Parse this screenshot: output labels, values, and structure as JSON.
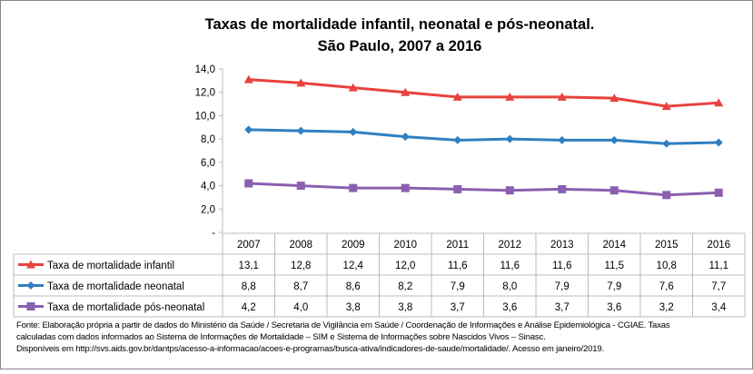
{
  "chart_data": {
    "type": "line",
    "title_line1": "Taxas de mortalidade infantil, neonatal e pós-neonatal.",
    "title_line2": "São Paulo, 2007 a 2016",
    "categories": [
      "2007",
      "2008",
      "2009",
      "2010",
      "2011",
      "2012",
      "2013",
      "2014",
      "2015",
      "2016"
    ],
    "ylim": [
      0,
      14
    ],
    "yticks": [
      "-",
      "2,0",
      "4,0",
      "6,0",
      "8,0",
      "10,0",
      "12,0",
      "14,0"
    ],
    "grid": false,
    "legend": "data-table",
    "series": [
      {
        "name": "Taxa de mortalidade infantil",
        "color": "#e8423f",
        "marker": "triangle",
        "values": [
          13.1,
          12.8,
          12.4,
          12.0,
          11.6,
          11.6,
          11.6,
          11.5,
          10.8,
          11.1
        ],
        "labels": [
          "13,1",
          "12,8",
          "12,4",
          "12,0",
          "11,6",
          "11,6",
          "11,6",
          "11,5",
          "10,8",
          "11,1"
        ]
      },
      {
        "name": "Taxa de mortalidade neonatal",
        "color": "#2f7fc1",
        "marker": "diamond",
        "values": [
          8.8,
          8.7,
          8.6,
          8.2,
          7.9,
          8.0,
          7.9,
          7.9,
          7.6,
          7.7
        ],
        "labels": [
          "8,8",
          "8,7",
          "8,6",
          "8,2",
          "7,9",
          "8,0",
          "7,9",
          "7,9",
          "7,6",
          "7,7"
        ]
      },
      {
        "name": "Taxa de mortalidade pós-neonatal",
        "color": "#8a5fb0",
        "marker": "square",
        "values": [
          4.2,
          4.0,
          3.8,
          3.8,
          3.7,
          3.6,
          3.7,
          3.6,
          3.2,
          3.4
        ],
        "labels": [
          "4,2",
          "4,0",
          "3,8",
          "3,8",
          "3,7",
          "3,6",
          "3,7",
          "3,6",
          "3,2",
          "3,4"
        ]
      }
    ]
  },
  "footnote": {
    "line1": "Fonte: Elaboração própria a partir de dados do Ministério da Saúde / Secretaria de Vigilância em Saúde / Coordenação de Informações e Análise Epidemiológica - CGIAE.  Taxas",
    "line2": "calculadas com dados informados ao Sistema de Informações de Mortalidade – SIM e Sistema de Informações sobre Nascidos Vivos – Sinasc.",
    "line3": "Disponíveis em http://svs.aids.gov.br/dantps/acesso-a-informacao/acoes-e-programas/busca-ativa/indicadores-de-saude/mortalidade/. Acesso em janeiro/2019."
  }
}
